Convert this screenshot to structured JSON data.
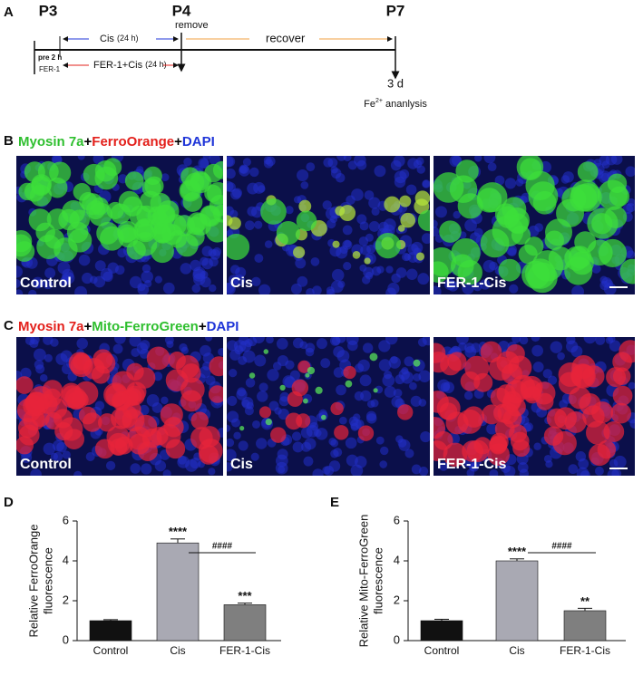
{
  "panel_a": {
    "letter": "A",
    "p3": "P3",
    "p4": "P4",
    "p7": "P7",
    "remove": "remove",
    "cis": "Cis",
    "cis_time": "(24 h)",
    "recover": "recover",
    "pre": "pre 2 h",
    "fer1": "FER-1",
    "fer_cis": "FER-1+Cis",
    "fer_cis_time": "(24 h)",
    "duration": "3 d",
    "analysis": [
      "Fe",
      "2+",
      " ananlysis"
    ]
  },
  "panel_b": {
    "letter": "B",
    "stain": [
      {
        "text": "Myosin 7a",
        "color": "#2fbf2f"
      },
      {
        "text": "+",
        "color": "#000000"
      },
      {
        "text": "FerroOrange",
        "color": "#e3201b"
      },
      {
        "text": "+",
        "color": "#000000"
      },
      {
        "text": "DAPI",
        "color": "#1f35d8"
      }
    ],
    "images": [
      "Control",
      "Cis",
      "FER-1-Cis"
    ]
  },
  "panel_c": {
    "letter": "C",
    "stain": [
      {
        "text": "Myosin 7a",
        "color": "#e3201b"
      },
      {
        "text": "+",
        "color": "#000000"
      },
      {
        "text": "Mito-FerroGreen",
        "color": "#2fbf2f"
      },
      {
        "text": "+",
        "color": "#000000"
      },
      {
        "text": "DAPI",
        "color": "#1f35d8"
      }
    ],
    "images": [
      "Control",
      "Cis",
      "FER-1-Cis"
    ]
  },
  "chart_data": [
    {
      "type": "bar",
      "letter": "D",
      "y_label": [
        "Relative FerroOrange",
        "fluorescence"
      ],
      "categories": [
        "Control",
        "Cis",
        "FER-1-Cis"
      ],
      "values": [
        1,
        4.9,
        1.8
      ],
      "errors": [
        0.05,
        0.2,
        0.08
      ],
      "colors": [
        "#111111",
        "#a9a9b3",
        "#7f7f7f"
      ],
      "significance": [
        null,
        "****",
        "***"
      ],
      "comparison": {
        "label": "####",
        "between": [
          "Cis",
          "FER-1-Cis"
        ]
      },
      "ylim": [
        0,
        6
      ],
      "yticks": [
        0,
        2,
        4,
        6
      ]
    },
    {
      "type": "bar",
      "letter": "E",
      "y_label": [
        "Relative Mito-FerroGreen",
        "fluorescence"
      ],
      "categories": [
        "Control",
        "Cis",
        "FER-1-Cis"
      ],
      "values": [
        1,
        4.0,
        1.5
      ],
      "errors": [
        0.07,
        0.1,
        0.12
      ],
      "colors": [
        "#111111",
        "#a9a9b3",
        "#7f7f7f"
      ],
      "significance": [
        null,
        "****",
        "**"
      ],
      "comparison": {
        "label": "####",
        "between": [
          "Cis",
          "FER-1-Cis"
        ]
      },
      "ylim": [
        0,
        6
      ],
      "yticks": [
        0,
        2,
        4,
        6
      ]
    }
  ]
}
